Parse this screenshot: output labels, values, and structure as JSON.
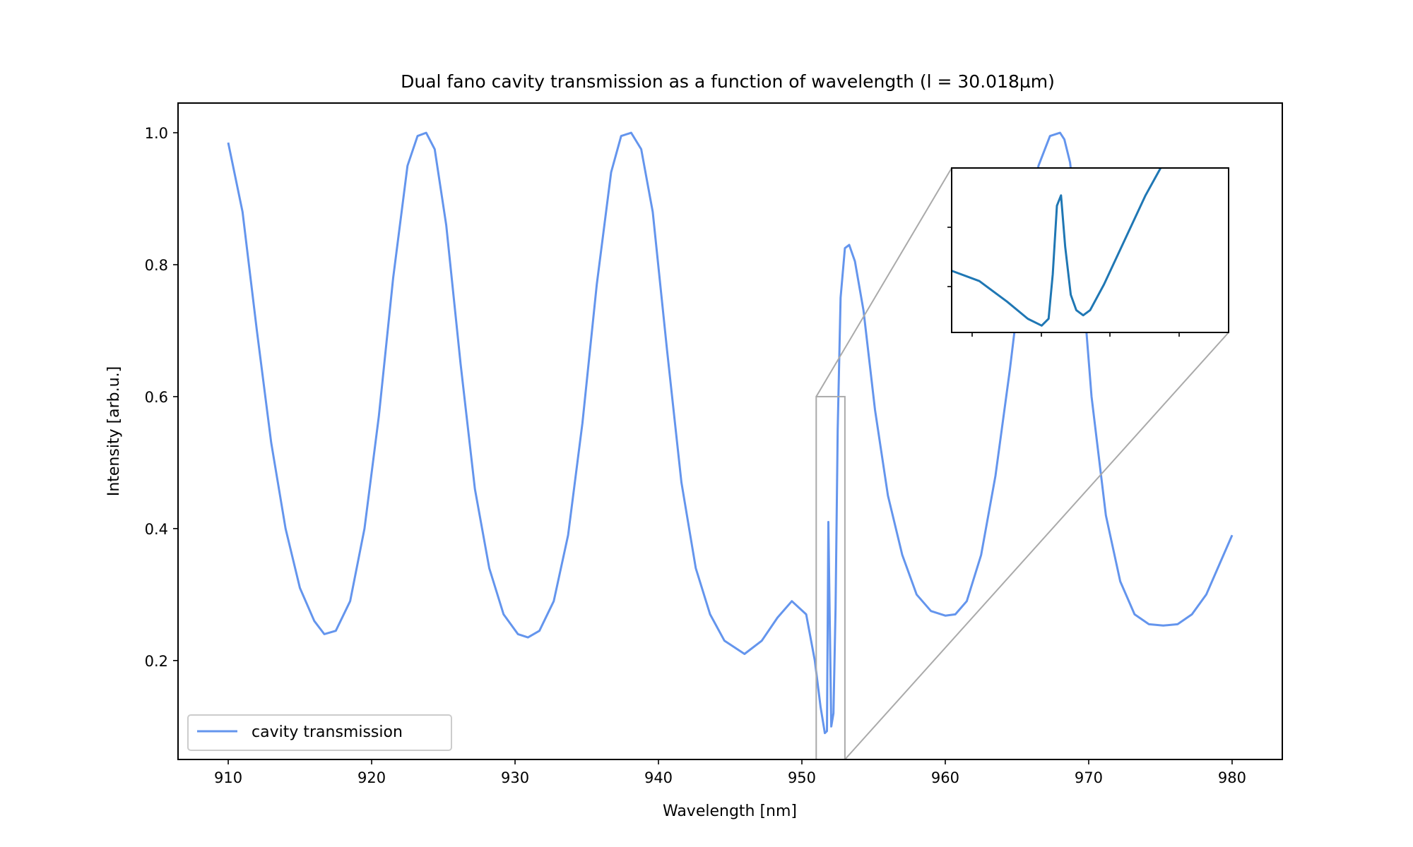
{
  "chart_data": {
    "type": "line",
    "title": "Dual fano cavity transmission as a function of wavelength (l = 30.018µm)",
    "xlabel": "Wavelength [nm]",
    "ylabel": "Intensity [arb.u.]",
    "xlim": [
      906.5,
      983.5
    ],
    "ylim": [
      0.05,
      1.045
    ],
    "xticks": [
      910,
      920,
      930,
      940,
      950,
      960,
      970,
      980
    ],
    "xtick_labels": [
      "910",
      "920",
      "930",
      "940",
      "950",
      "960",
      "970",
      "980"
    ],
    "yticks": [
      0.2,
      0.4,
      0.6,
      0.8,
      1.0
    ],
    "ytick_labels": [
      "0.2",
      "0.4",
      "0.6",
      "0.8",
      "1.0"
    ],
    "grid": false,
    "legend_position": "lower-left",
    "series": [
      {
        "name": "cavity transmission",
        "color": "#6495ED",
        "x": [
          910,
          911,
          912,
          913,
          914,
          915,
          916,
          916.7,
          917.5,
          918.5,
          919.5,
          920.5,
          921.5,
          922.5,
          923.2,
          923.8,
          924.4,
          925.2,
          926.2,
          927.2,
          928.2,
          929.2,
          930.2,
          930.9,
          931.7,
          932.7,
          933.7,
          934.7,
          935.7,
          936.7,
          937.4,
          938.1,
          938.8,
          939.6,
          940.6,
          941.6,
          942.6,
          943.6,
          944.6,
          946.0,
          947.2,
          948.3,
          949.3,
          950.3,
          950.9,
          951.3,
          951.6,
          951.75,
          951.85,
          952.05,
          952.2,
          952.35,
          952.5,
          952.7,
          953.0,
          953.3,
          953.7,
          954.3,
          955.1,
          956.0,
          957.0,
          958.0,
          959.0,
          960.0,
          960.7,
          961.5,
          962.5,
          963.5,
          964.5,
          965.5,
          966.5,
          967.3,
          968.0,
          968.3,
          968.7,
          969.4,
          970.2,
          971.2,
          972.2,
          973.2,
          974.2,
          975.2,
          976.2,
          977.2,
          978.2,
          979.2,
          980.0
        ],
        "y": [
          0.985,
          0.88,
          0.7,
          0.53,
          0.4,
          0.31,
          0.26,
          0.24,
          0.245,
          0.29,
          0.4,
          0.57,
          0.78,
          0.95,
          0.995,
          1.0,
          0.975,
          0.86,
          0.65,
          0.46,
          0.34,
          0.27,
          0.24,
          0.235,
          0.245,
          0.29,
          0.39,
          0.56,
          0.77,
          0.94,
          0.995,
          1.0,
          0.975,
          0.88,
          0.67,
          0.47,
          0.34,
          0.27,
          0.23,
          0.21,
          0.23,
          0.265,
          0.29,
          0.27,
          0.2,
          0.13,
          0.09,
          0.093,
          0.41,
          0.1,
          0.12,
          0.28,
          0.55,
          0.75,
          0.825,
          0.83,
          0.805,
          0.73,
          0.58,
          0.45,
          0.36,
          0.3,
          0.275,
          0.268,
          0.27,
          0.29,
          0.36,
          0.48,
          0.64,
          0.82,
          0.95,
          0.995,
          1.0,
          0.99,
          0.955,
          0.82,
          0.6,
          0.42,
          0.32,
          0.27,
          0.255,
          0.253,
          0.255,
          0.27,
          0.3,
          0.35,
          0.39
        ]
      }
    ],
    "inset": {
      "source_box": {
        "x": [
          951.0,
          953.0
        ],
        "y": [
          0.05,
          0.6
        ]
      },
      "color": "#1f77b4",
      "x": [
        951.0,
        951.2,
        951.4,
        951.55,
        951.65,
        951.7,
        951.73,
        951.76,
        951.79,
        951.82,
        951.86,
        951.9,
        951.95,
        952.0,
        952.1,
        952.25,
        952.4,
        952.55
      ],
      "y": [
        0.43,
        0.4,
        0.34,
        0.29,
        0.27,
        0.29,
        0.42,
        0.62,
        0.65,
        0.5,
        0.36,
        0.315,
        0.3,
        0.315,
        0.39,
        0.52,
        0.65,
        0.76
      ],
      "xlim": [
        951.0,
        953.0
      ],
      "ylim": [
        0.25,
        0.73
      ]
    }
  }
}
